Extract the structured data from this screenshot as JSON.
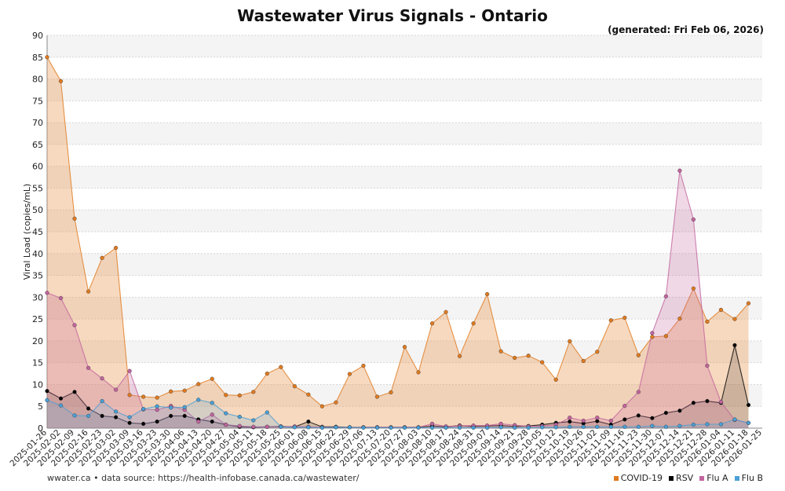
{
  "title": "Wastewater Virus Signals - Ontario",
  "subtitle": "(generated: Fri Feb 06, 2026)",
  "footer": "wwater.ca • data source: https://health-infobase.canada.ca/wastewater/",
  "chart_data": {
    "type": "area",
    "title": "Wastewater Virus Signals - Ontario",
    "xlabel": "",
    "ylabel": "Viral Load (copies/mL)",
    "ylim": [
      0,
      90
    ],
    "yticks": [
      0,
      5,
      10,
      15,
      20,
      25,
      30,
      35,
      40,
      45,
      50,
      55,
      60,
      65,
      70,
      75,
      80,
      85,
      90
    ],
    "grid": true,
    "legend_position": "bottom-right",
    "x": [
      "2025-01-26",
      "2025-02-02",
      "2025-02-09",
      "2025-02-16",
      "2025-02-23",
      "2025-03-02",
      "2025-03-09",
      "2025-03-16",
      "2025-03-23",
      "2025-03-30",
      "2025-04-06",
      "2025-04-13",
      "2025-04-20",
      "2025-04-27",
      "2025-05-04",
      "2025-05-11",
      "2025-05-18",
      "2025-05-25",
      "2025-06-01",
      "2025-06-08",
      "2025-06-15",
      "2025-06-22",
      "2025-06-29",
      "2025-07-06",
      "2025-07-13",
      "2025-07-20",
      "2025-07-27",
      "2025-08-03",
      "2025-08-10",
      "2025-08-17",
      "2025-08-24",
      "2025-08-31",
      "2025-09-07",
      "2025-09-14",
      "2025-09-21",
      "2025-09-28",
      "2025-10-05",
      "2025-10-12",
      "2025-10-19",
      "2025-10-26",
      "2025-11-02",
      "2025-11-09",
      "2025-11-16",
      "2025-11-23",
      "2025-11-30",
      "2025-12-07",
      "2025-12-14",
      "2025-12-21",
      "2025-12-28",
      "2026-01-04",
      "2026-01-11",
      "2026-01-18",
      "2026-01-25"
    ],
    "series": [
      {
        "name": "COVID-19",
        "color": "#e07a1f",
        "fill": "rgba(235,160,95,0.40)",
        "values": [
          85,
          79.5,
          48,
          31.3,
          39,
          41.3,
          7.6,
          7.2,
          7,
          8.4,
          8.6,
          10.1,
          11.3,
          7.6,
          7.5,
          8.3,
          12.5,
          14,
          9.6,
          7.7,
          5,
          5.9,
          12.4,
          14.3,
          7.2,
          8.2,
          18.6,
          12.8,
          24,
          26.6,
          16.5,
          24,
          30.7,
          17.6,
          16.1,
          16.6,
          15.1,
          11.1,
          19.9,
          15.4,
          17.5,
          24.7,
          25.3,
          16.7,
          20.9,
          21.1,
          25.1,
          32,
          24.4,
          27.1,
          25,
          28.6,
          null
        ]
      },
      {
        "name": "RSV",
        "color": "#000000",
        "fill": "rgba(0,0,0,0.15)",
        "values": [
          8.5,
          6.8,
          8.3,
          4.5,
          2.8,
          2.5,
          1.2,
          1,
          1.5,
          2.8,
          2.8,
          2,
          1.5,
          0.8,
          0.3,
          0.2,
          0.3,
          0.4,
          0.3,
          1.5,
          0.3,
          0.3,
          0.2,
          0.2,
          0.2,
          0.2,
          0.2,
          0.2,
          0.5,
          0.3,
          0.6,
          0.4,
          0.5,
          0.6,
          0.4,
          0.5,
          0.8,
          1.2,
          1.5,
          1.1,
          1.6,
          0.8,
          2,
          2.9,
          2.3,
          3.5,
          4,
          5.8,
          6.2,
          5.8,
          19,
          5.3,
          null
        ]
      },
      {
        "name": "Flu A",
        "color": "#c2649e",
        "fill": "rgba(200,100,155,0.25)",
        "values": [
          31,
          29.8,
          23.6,
          13.8,
          11.4,
          8.8,
          13.1,
          4.3,
          4.2,
          5.1,
          4.2,
          1.5,
          3.1,
          0.8,
          0.5,
          0.3,
          0.3,
          0.3,
          0.4,
          0.3,
          0.2,
          0.2,
          0.2,
          0.2,
          0.2,
          0.2,
          0.2,
          0.2,
          1,
          0.4,
          0.5,
          0.6,
          0.6,
          1,
          0.7,
          0.4,
          0.5,
          0.8,
          2.4,
          1.7,
          2.4,
          1.7,
          5.1,
          8.3,
          21.8,
          30.2,
          59,
          47.8,
          14.3,
          6,
          1.9,
          1.2,
          null
        ]
      },
      {
        "name": "Flu B",
        "color": "#4a9fd6",
        "fill": "rgba(90,170,220,0.22)",
        "values": [
          6.4,
          5.2,
          2.9,
          2.8,
          6.2,
          3.8,
          2.5,
          4.4,
          5,
          4.7,
          4.8,
          6.5,
          5.8,
          3.4,
          2.6,
          1.8,
          3.6,
          0.3,
          0.2,
          0.2,
          0.1,
          0.2,
          0.2,
          0.1,
          0.1,
          0.1,
          0.1,
          0.1,
          0.1,
          0.1,
          0.1,
          0.1,
          0.1,
          0.2,
          0.1,
          0.1,
          0.2,
          0.2,
          0.3,
          0.3,
          0.3,
          0.3,
          0.3,
          0.3,
          0.5,
          0.3,
          0.5,
          0.8,
          0.9,
          0.9,
          2,
          1.2,
          null
        ]
      }
    ]
  }
}
